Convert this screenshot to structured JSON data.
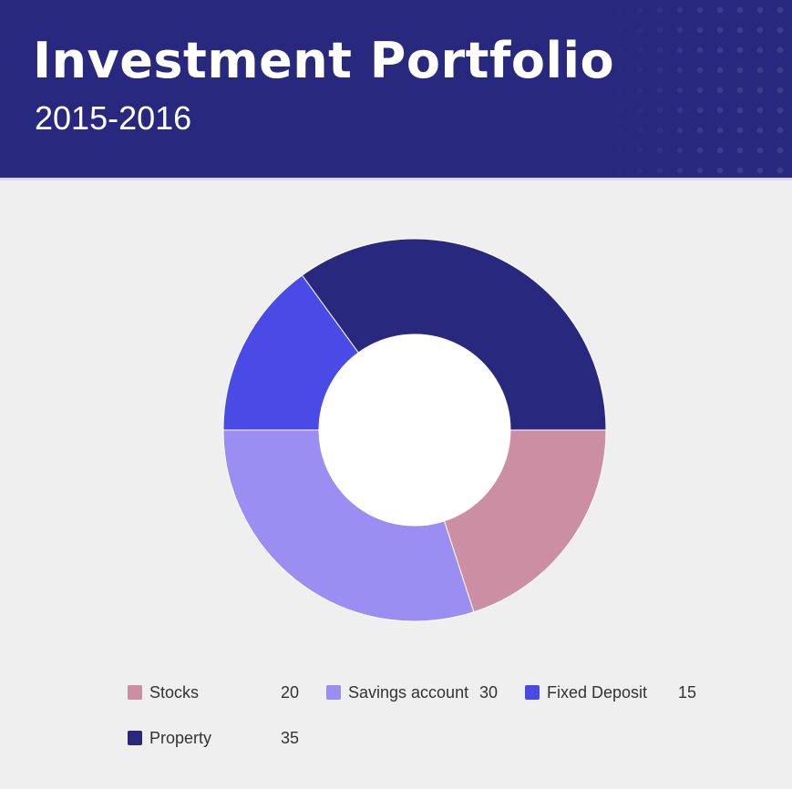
{
  "header": {
    "title": "Investment Portfolio",
    "subtitle": "2015-2016"
  },
  "colors": {
    "header_bg": "#28287e",
    "page_bg": "#efefef",
    "hole": "#ffffff"
  },
  "chart_data": {
    "type": "pie",
    "donut": true,
    "start_angle_deg": 0,
    "direction": "clockwise",
    "slices": [
      {
        "label": "Stocks",
        "value": 20,
        "color": "#cc8ea2"
      },
      {
        "label": "Savings account",
        "value": 30,
        "color": "#9a8ef2"
      },
      {
        "label": "Fixed Deposit",
        "value": 15,
        "color": "#4a4ae6"
      },
      {
        "label": "Property",
        "value": 35,
        "color": "#28287e"
      }
    ],
    "legend_position": "bottom"
  }
}
